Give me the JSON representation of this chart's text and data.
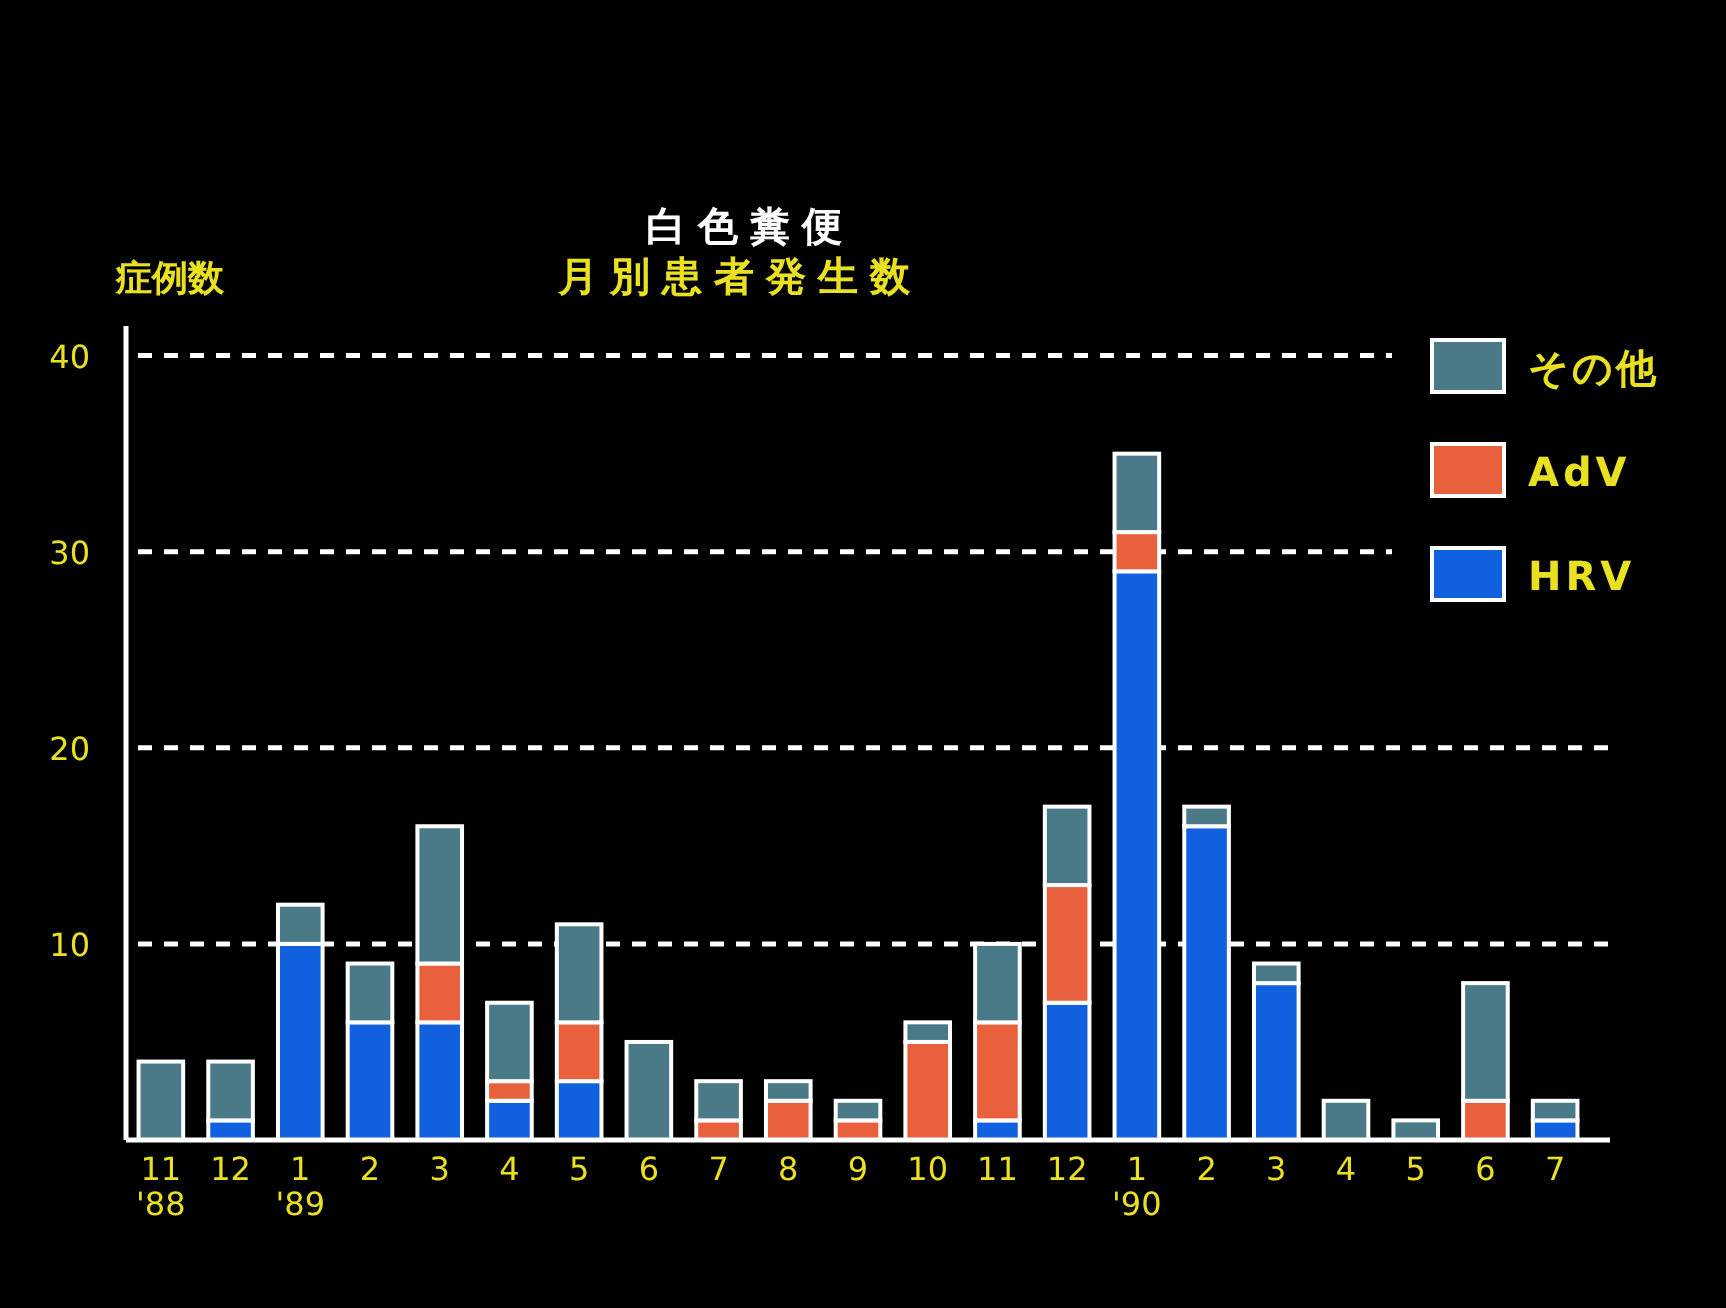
{
  "chart_data": {
    "type": "bar",
    "title": "白色糞便",
    "subtitle": "月別患者発生数",
    "ylabel": "症例数",
    "categories": [
      "11\n'88",
      "12",
      "1\n'89",
      "2",
      "3",
      "4",
      "5",
      "6",
      "7",
      "8",
      "9",
      "10",
      "11",
      "12",
      "1\n'90",
      "2",
      "3",
      "4",
      "5",
      "6",
      "7"
    ],
    "stacked": true,
    "series": [
      {
        "name": "HRV",
        "color": "#1060e0",
        "values": [
          0,
          1,
          10,
          6,
          6,
          2,
          3,
          0,
          0,
          0,
          0,
          0,
          1,
          7,
          29,
          16,
          8,
          0,
          0,
          0,
          1
        ]
      },
      {
        "name": "AdV",
        "color": "#e8603c",
        "values": [
          0,
          0,
          0,
          0,
          3,
          1,
          3,
          0,
          1,
          2,
          1,
          5,
          5,
          6,
          2,
          0,
          0,
          0,
          0,
          2,
          0
        ]
      },
      {
        "name": "その他",
        "color": "#4a7a88",
        "values": [
          4,
          3,
          2,
          3,
          7,
          4,
          5,
          5,
          2,
          1,
          1,
          1,
          4,
          4,
          4,
          1,
          1,
          2,
          1,
          6,
          1
        ]
      }
    ],
    "ylim": [
      0,
      41
    ],
    "yticks": [
      10,
      20,
      30,
      40
    ],
    "grid": "y",
    "legend": "top right"
  }
}
